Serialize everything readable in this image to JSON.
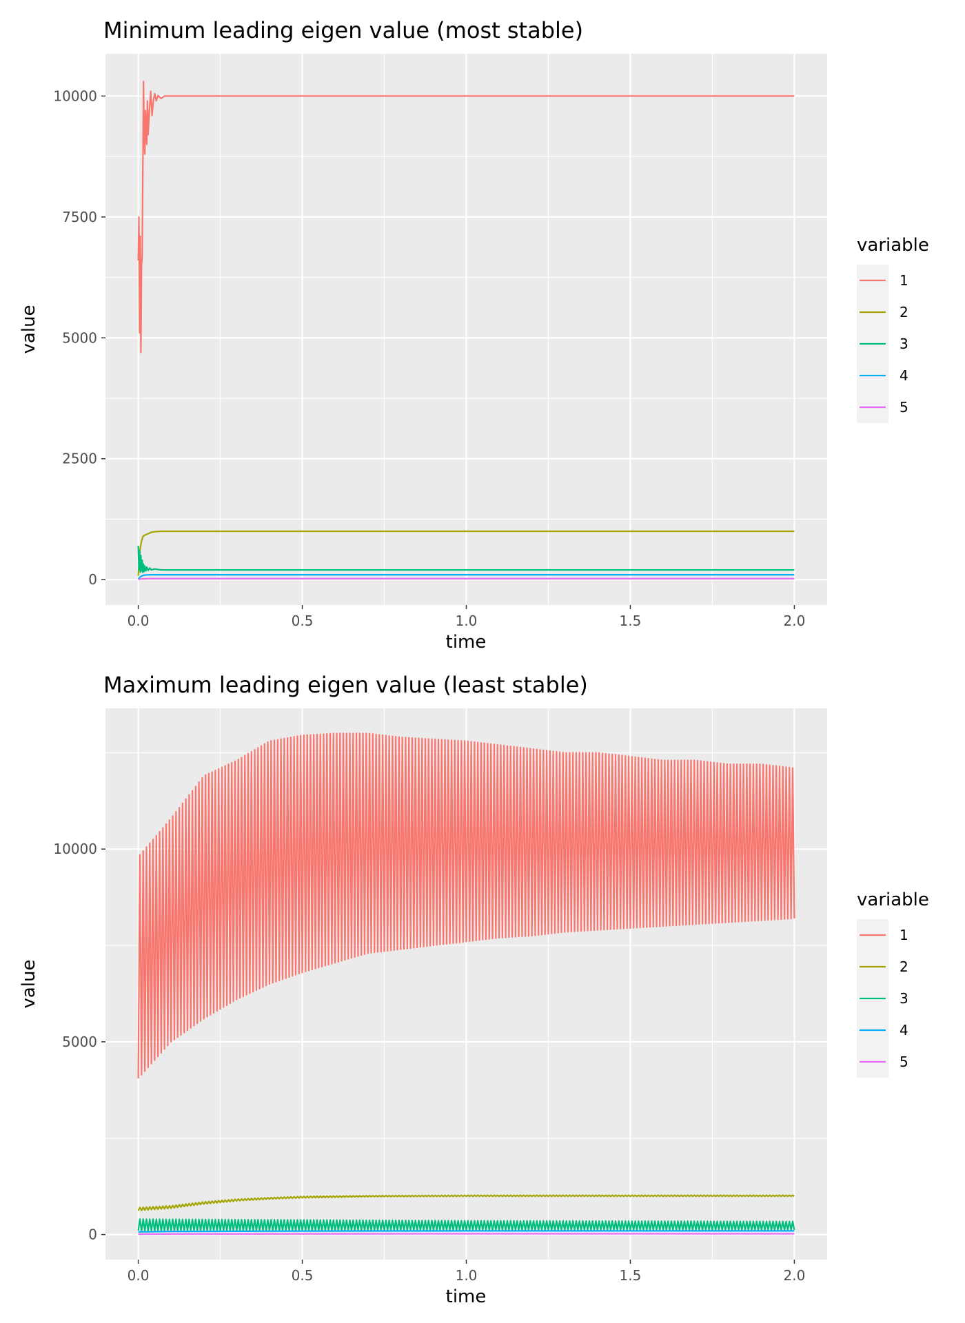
{
  "chart_data": [
    {
      "type": "line",
      "title": "Minimum leading eigen value (most stable)",
      "xlabel": "time",
      "ylabel": "value",
      "xlim": [
        -0.1,
        2.1
      ],
      "ylim": [
        -525,
        10875
      ],
      "x_ticks": [
        0.0,
        0.5,
        1.0,
        1.5,
        2.0
      ],
      "x_tick_labels": [
        "0.0",
        "0.5",
        "1.0",
        "1.5",
        "2.0"
      ],
      "y_ticks": [
        0,
        2500,
        5000,
        7500,
        10000
      ],
      "y_tick_labels": [
        "0",
        "2500",
        "5000",
        "7500",
        "10000"
      ],
      "grid": true,
      "legend": {
        "title": "variable",
        "position": "right"
      },
      "series": [
        {
          "name": "1",
          "color": "#F8766D",
          "x": [
            0,
            0.002,
            0.004,
            0.006,
            0.008,
            0.01,
            0.012,
            0.014,
            0.016,
            0.018,
            0.02,
            0.022,
            0.024,
            0.026,
            0.028,
            0.03,
            0.034,
            0.038,
            0.042,
            0.046,
            0.05,
            0.055,
            0.06,
            0.07,
            0.08,
            0.1,
            0.15,
            2.0
          ],
          "y": [
            6600,
            7500,
            5100,
            7100,
            4700,
            6500,
            6700,
            8500,
            10300,
            9100,
            8800,
            9700,
            9300,
            9000,
            9900,
            9200,
            9700,
            10100,
            9600,
            9900,
            10050,
            9900,
            10010,
            9950,
            10000,
            10000,
            10000,
            10000
          ]
        },
        {
          "name": "2",
          "color": "#A3A500",
          "x": [
            0,
            0.005,
            0.01,
            0.015,
            0.02,
            0.03,
            0.04,
            0.05,
            0.07,
            0.1,
            2.0
          ],
          "y": [
            80,
            600,
            800,
            900,
            920,
            950,
            980,
            990,
            1000,
            1000,
            1000
          ]
        },
        {
          "name": "3",
          "color": "#00BF7D",
          "x": [
            0,
            0.002,
            0.004,
            0.006,
            0.008,
            0.01,
            0.012,
            0.014,
            0.016,
            0.018,
            0.02,
            0.023,
            0.026,
            0.03,
            0.035,
            0.04,
            0.05,
            0.07,
            0.1,
            2.0
          ],
          "y": [
            700,
            200,
            600,
            150,
            500,
            180,
            400,
            150,
            320,
            170,
            280,
            180,
            260,
            190,
            240,
            200,
            220,
            200,
            200,
            200
          ]
        },
        {
          "name": "4",
          "color": "#00B0F6",
          "x": [
            0,
            0.005,
            0.01,
            0.02,
            0.04,
            0.06,
            0.1,
            2.0
          ],
          "y": [
            10,
            50,
            75,
            95,
            100,
            100,
            100,
            100
          ]
        },
        {
          "name": "5",
          "color": "#E76BF3",
          "x": [
            0,
            0.01,
            0.03,
            0.06,
            2.0
          ],
          "y": [
            5,
            15,
            20,
            20,
            20
          ]
        }
      ]
    },
    {
      "type": "line",
      "title": "Maximum leading eigen value (least stable)",
      "xlabel": "time",
      "ylabel": "value",
      "xlim": [
        -0.1,
        2.1
      ],
      "ylim": [
        -650,
        13650
      ],
      "x_ticks": [
        0.0,
        0.5,
        1.0,
        1.5,
        2.0
      ],
      "x_tick_labels": [
        "0.0",
        "0.5",
        "1.0",
        "1.5",
        "2.0"
      ],
      "y_ticks": [
        0,
        5000,
        10000
      ],
      "y_tick_labels": [
        "0",
        "5000",
        "10000"
      ],
      "grid": true,
      "legend": {
        "title": "variable",
        "position": "right"
      },
      "series": [
        {
          "name": "1",
          "color": "#F8766D",
          "style": "dense-oscillation",
          "cycles": 200,
          "envelope_time": [
            0,
            0.1,
            0.2,
            0.3,
            0.4,
            0.5,
            0.6,
            0.7,
            0.8,
            0.9,
            1.0,
            1.1,
            1.2,
            1.3,
            1.4,
            1.5,
            1.6,
            1.7,
            1.8,
            1.9,
            2.0
          ],
          "envelope_upper": [
            9800,
            10800,
            11900,
            12300,
            12800,
            12950,
            13000,
            13000,
            12900,
            12850,
            12800,
            12700,
            12600,
            12500,
            12500,
            12400,
            12300,
            12300,
            12200,
            12200,
            12100
          ],
          "envelope_lower": [
            4050,
            5000,
            5600,
            6100,
            6500,
            6800,
            7050,
            7300,
            7400,
            7500,
            7600,
            7700,
            7750,
            7850,
            7900,
            7950,
            8000,
            8050,
            8100,
            8150,
            8200
          ]
        },
        {
          "name": "2",
          "color": "#A3A500",
          "style": "dense-oscillation",
          "cycles": 200,
          "envelope_time": [
            0,
            0.1,
            0.2,
            0.3,
            0.4,
            0.5,
            0.7,
            1.0,
            1.5,
            2.0
          ],
          "envelope_upper": [
            700,
            750,
            850,
            920,
            960,
            990,
            1010,
            1020,
            1020,
            1020
          ],
          "envelope_lower": [
            620,
            680,
            790,
            870,
            920,
            950,
            980,
            990,
            990,
            990
          ]
        },
        {
          "name": "3",
          "color": "#00BF7D",
          "style": "dense-oscillation",
          "cycles": 200,
          "envelope_time": [
            0,
            0.5,
            1.0,
            1.5,
            2.0
          ],
          "envelope_upper": [
            400,
            380,
            360,
            350,
            340
          ],
          "envelope_lower": [
            100,
            110,
            120,
            120,
            120
          ]
        },
        {
          "name": "4",
          "color": "#00B0F6",
          "x": [
            0,
            0.1,
            0.5,
            1.0,
            2.0
          ],
          "y": [
            70,
            80,
            90,
            95,
            95
          ]
        },
        {
          "name": "5",
          "color": "#E76BF3",
          "x": [
            0,
            0.1,
            1.0,
            2.0
          ],
          "y": [
            10,
            15,
            20,
            20
          ]
        }
      ]
    }
  ]
}
